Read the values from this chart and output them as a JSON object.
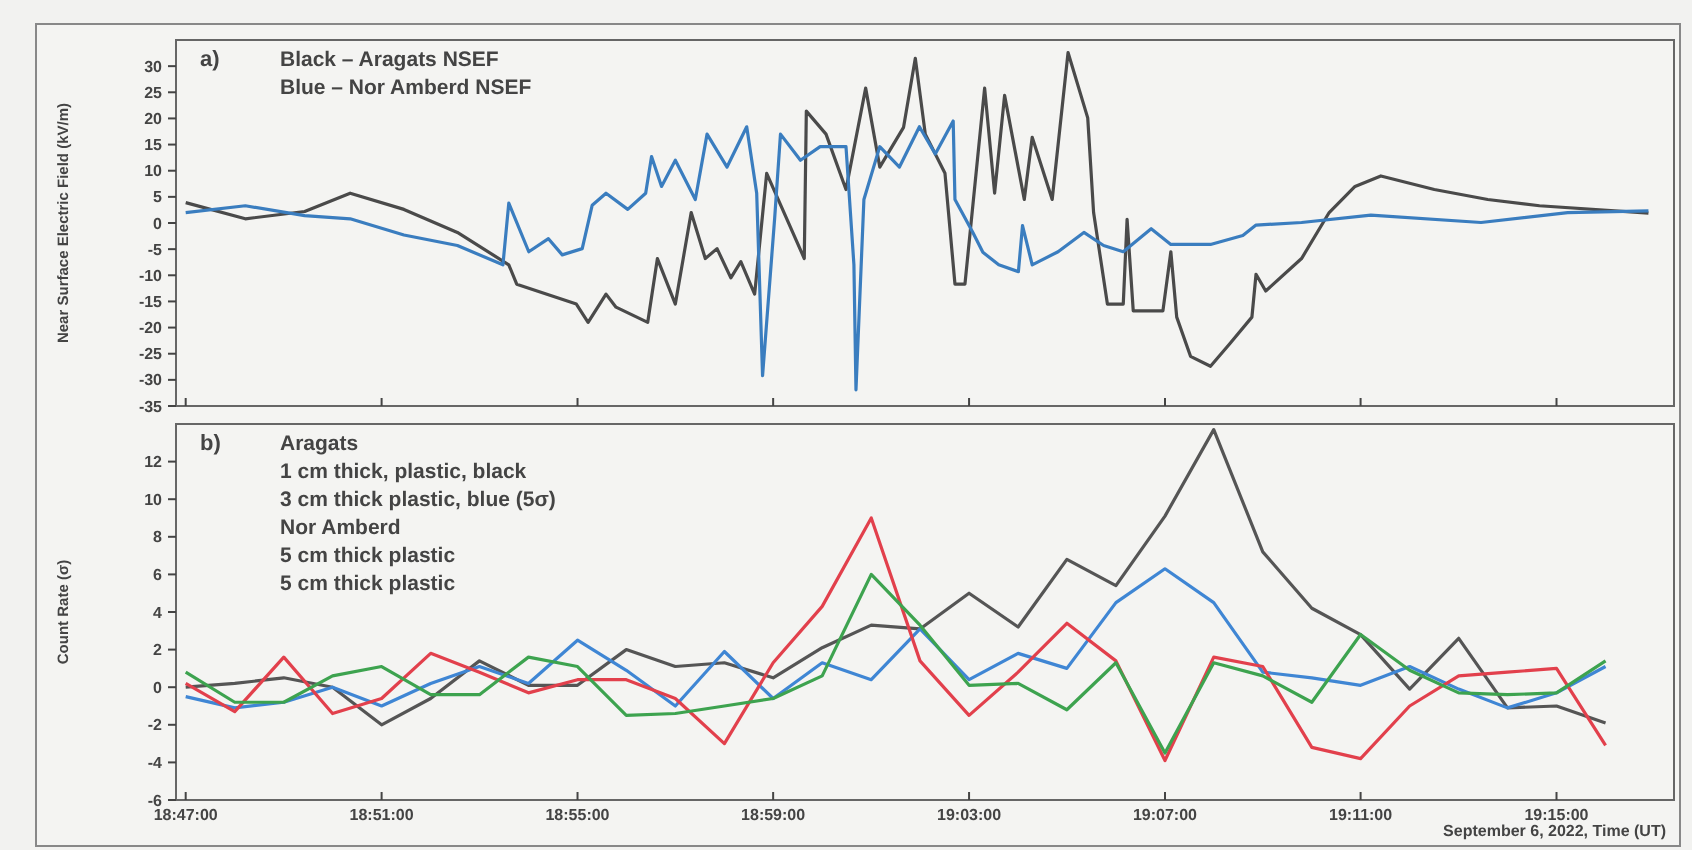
{
  "chart_data": [
    {
      "type": "line",
      "title": "a)",
      "ylabel": "Near Surface Electric Field (kV/m)",
      "annotations": [
        "Black – Aragats NSEF",
        "Blue – Nor Amberd NSEF"
      ],
      "xlim": [
        18.78,
        19.29
      ],
      "ylim": [
        -35,
        35
      ],
      "yticks": [
        -35,
        -30,
        -25,
        -20,
        -15,
        -10,
        -5,
        0,
        5,
        10,
        15,
        20,
        25,
        30
      ],
      "xticks": [
        {
          "value": 18.7833,
          "label": null
        },
        {
          "value": 18.85,
          "label": null
        },
        {
          "value": 18.9167,
          "label": null
        },
        {
          "value": 18.9833,
          "label": null
        },
        {
          "value": 19.05,
          "label": null
        },
        {
          "value": 19.1167,
          "label": null
        },
        {
          "value": 19.1833,
          "label": null
        },
        {
          "value": 19.25,
          "label": null
        }
      ],
      "tick_labels": "y",
      "series": [
        {
          "color": "#4a4a4a",
          "x": [
            18.7833,
            18.8036,
            18.8238,
            18.8393,
            18.8576,
            18.8758,
            18.8933,
            18.896,
            18.9163,
            18.9203,
            18.9264,
            18.9298,
            18.9406,
            18.9439,
            18.95,
            18.9554,
            18.9602,
            18.9642,
            18.9689,
            18.9723,
            18.977,
            18.9811,
            18.9939,
            18.9946,
            19.0013,
            19.0081,
            19.0148,
            19.0196,
            19.0277,
            19.0317,
            19.0351,
            19.0418,
            19.0452,
            19.0486,
            19.0553,
            19.0587,
            19.0621,
            19.0688,
            19.0715,
            19.0783,
            19.0837,
            19.0904,
            19.0924,
            19.0971,
            19.1025,
            19.1038,
            19.1059,
            19.116,
            19.1187,
            19.1207,
            19.1254,
            19.1322,
            19.1389,
            19.1463,
            19.1477,
            19.151,
            19.1632,
            19.1726,
            19.1814,
            19.1902,
            19.2084,
            19.2266,
            19.2442,
            19.2813
          ],
          "values": [
            3.9,
            0.8,
            2.2,
            5.7,
            2.6,
            -1.8,
            -8,
            -11.7,
            -15.5,
            -19,
            -13.6,
            -16.1,
            -19,
            -6.8,
            -15.5,
            2,
            -6.8,
            -4.9,
            -10.5,
            -7.4,
            -13.6,
            9.5,
            -6.8,
            21.4,
            17,
            6.4,
            25.8,
            10.7,
            18.3,
            31.5,
            17,
            9.5,
            -11.7,
            -11.7,
            25.8,
            5.7,
            24.4,
            4.5,
            16.4,
            4.5,
            32.6,
            20.1,
            2,
            -15.5,
            -15.5,
            0.7,
            -16.8,
            -16.8,
            -5.5,
            -18,
            -25.5,
            -27.4,
            -23,
            -18,
            -9.8,
            -13,
            -6.8,
            2,
            7,
            9,
            6.4,
            4.5,
            3.3,
            1.9
          ]
        },
        {
          "color": "#3a7dbf",
          "x": [
            18.7833,
            18.8036,
            18.8238,
            18.8393,
            18.8576,
            18.8758,
            18.8913,
            18.8933,
            18.9001,
            18.9068,
            18.9115,
            18.9183,
            18.9217,
            18.9264,
            18.9338,
            18.9399,
            18.9419,
            18.9453,
            18.95,
            18.9568,
            18.9608,
            18.9676,
            18.9743,
            18.9777,
            18.9797,
            18.9838,
            18.9858,
            18.9926,
            18.9993,
            19.0081,
            19.0108,
            19.0115,
            19.0142,
            19.0196,
            19.0263,
            19.0331,
            19.0385,
            19.0446,
            19.0452,
            19.0513,
            19.0547,
            19.0601,
            19.0668,
            19.0682,
            19.0715,
            19.0803,
            19.0891,
            19.0958,
            19.1025,
            19.112,
            19.1187,
            19.1322,
            19.1432,
            19.1477,
            19.1632,
            19.1868,
            19.2243,
            19.2538,
            19.2813
          ],
          "values": [
            2,
            3.3,
            1.4,
            0.8,
            -2.3,
            -4.3,
            -8,
            3.8,
            -5.5,
            -3,
            -6.1,
            -4.9,
            3.4,
            5.7,
            2.6,
            5.7,
            12.7,
            7,
            12,
            4.5,
            17,
            10.7,
            18.4,
            5.7,
            -29.2,
            0.8,
            17,
            12,
            14.6,
            14.6,
            -8,
            -31.9,
            4.5,
            14.6,
            10.7,
            18.4,
            13.2,
            19.5,
            4.5,
            -1.8,
            -5.6,
            -8,
            -9.3,
            -0.5,
            -8,
            -5.5,
            -1.8,
            -4.3,
            -5.5,
            -1.1,
            -4.1,
            -4.1,
            -2.4,
            -0.4,
            0.1,
            1.5,
            0.1,
            2,
            2.3
          ]
        }
      ]
    },
    {
      "type": "line",
      "title": "b)",
      "ylabel": "Count Rate (σ)",
      "xlabel": "September 6, 2022, Time (UT)",
      "annotations": [
        "Aragats",
        "1 cm thick, plastic, black",
        "3 cm thick plastic, blue (5σ)",
        "Nor Amberd",
        "5 cm thick plastic",
        "5 cm thick plastic"
      ],
      "xlim": [
        18.78,
        19.29
      ],
      "ylim": [
        -6,
        14
      ],
      "yticks": [
        -6,
        -4,
        -2,
        0,
        2,
        4,
        6,
        8,
        10,
        12
      ],
      "xticks": [
        {
          "value": 18.7833,
          "label": "18:47:00"
        },
        {
          "value": 18.85,
          "label": "18:51:00"
        },
        {
          "value": 18.9167,
          "label": "18:55:00"
        },
        {
          "value": 18.9833,
          "label": "18:59:00"
        },
        {
          "value": 19.05,
          "label": "19:03:00"
        },
        {
          "value": 19.1167,
          "label": "19:07:00"
        },
        {
          "value": 19.1833,
          "label": "19:11:00"
        },
        {
          "value": 19.25,
          "label": "19:15:00"
        }
      ],
      "x": [
        18.7833,
        18.8,
        18.8167,
        18.8333,
        18.85,
        18.8667,
        18.8833,
        18.9,
        18.9167,
        18.9333,
        18.95,
        18.9667,
        18.9833,
        19,
        19.0167,
        19.0333,
        19.05,
        19.0667,
        19.0833,
        19.1,
        19.1167,
        19.1333,
        19.15,
        19.1667,
        19.1833,
        19.2,
        19.2167,
        19.2333,
        19.25,
        19.2667
      ],
      "series": [
        {
          "color": "#555555",
          "values": [
            0,
            0.2,
            0.5,
            0,
            -2,
            -0.6,
            1.4,
            0.1,
            0.1,
            2,
            1.1,
            1.3,
            0.5,
            2.1,
            3.3,
            3.1,
            5,
            3.2,
            6.8,
            5.4,
            9.1,
            13.7,
            7.2,
            4.2,
            2.8,
            -0.1,
            2.6,
            -1.1,
            -1,
            -1.9
          ]
        },
        {
          "color": "#3f86d4",
          "values": [
            -0.5,
            -1.1,
            -0.8,
            0,
            -1,
            0.2,
            1.1,
            0.2,
            2.5,
            0.9,
            -1,
            1.9,
            -0.6,
            1.3,
            0.4,
            3.1,
            0.4,
            1.8,
            1,
            4.5,
            6.3,
            4.5,
            0.8,
            0.5,
            0.1,
            1.1,
            -0.1,
            -1.1,
            -0.3,
            1.1
          ]
        },
        {
          "color": "#e2404c",
          "values": [
            0.2,
            -1.3,
            1.6,
            -1.4,
            -0.6,
            1.8,
            0.8,
            -0.3,
            0.4,
            0.4,
            -0.6,
            -3,
            1.3,
            4.3,
            9,
            1.4,
            -1.5,
            0.8,
            3.4,
            1.4,
            -3.9,
            1.6,
            1.1,
            -3.2,
            -3.8,
            -1,
            0.6,
            0.8,
            1,
            -3.1
          ]
        },
        {
          "color": "#3da34f",
          "values": [
            0.8,
            -0.8,
            -0.8,
            0.6,
            1.1,
            -0.4,
            -0.4,
            1.6,
            1.1,
            -1.5,
            -1.4,
            -1,
            -0.6,
            0.6,
            6,
            3.3,
            0.1,
            0.2,
            -1.2,
            1.3,
            -3.5,
            1.3,
            0.6,
            -0.8,
            2.8,
            0.9,
            -0.3,
            -0.4,
            -0.3,
            1.4
          ]
        }
      ]
    }
  ]
}
